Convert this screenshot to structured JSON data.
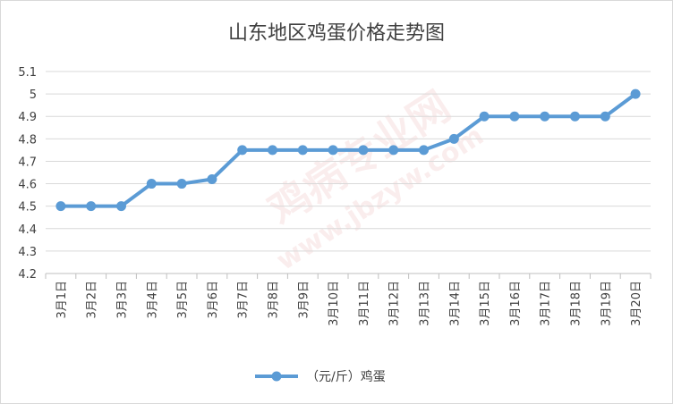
{
  "chart_data": {
    "type": "line",
    "title": "山东地区鸡蛋价格走势图",
    "xlabel": "",
    "ylabel": "",
    "categories": [
      "3月1日",
      "3月2日",
      "3月3日",
      "3月4日",
      "3月5日",
      "3月6日",
      "3月7日",
      "3月8日",
      "3月9日",
      "3月10日",
      "3月11日",
      "3月12日",
      "3月13日",
      "3月14日",
      "3月15日",
      "3月16日",
      "3月17日",
      "3月18日",
      "3月19日",
      "3月20日"
    ],
    "series": [
      {
        "name": "（元/斤）鸡蛋",
        "color": "#5b9bd5",
        "values": [
          4.5,
          4.5,
          4.5,
          4.6,
          4.6,
          4.62,
          4.75,
          4.75,
          4.75,
          4.75,
          4.75,
          4.75,
          4.75,
          4.8,
          4.9,
          4.9,
          4.9,
          4.9,
          4.9,
          5.0
        ]
      }
    ],
    "ylim": [
      4.2,
      5.1
    ],
    "yticks": [
      "4.2",
      "4.3",
      "4.4",
      "4.5",
      "4.6",
      "4.7",
      "4.8",
      "4.9",
      "5",
      "5.1"
    ],
    "grid": true,
    "legend_position": "bottom"
  },
  "watermark": {
    "text": "鸡病专业网",
    "url": "www.jbzyw.com"
  }
}
